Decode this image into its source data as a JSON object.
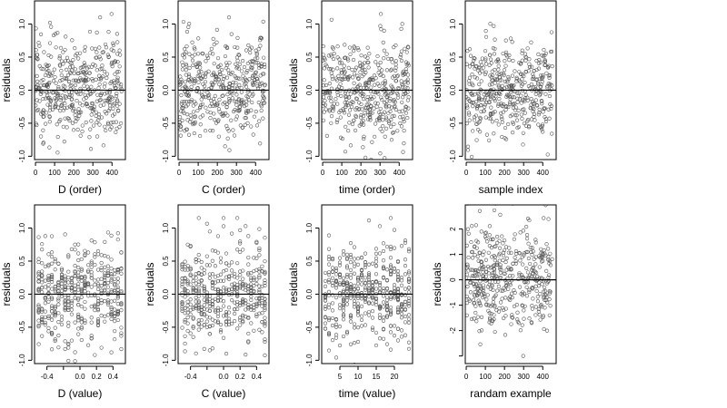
{
  "colors": {
    "point_stroke": "#555555",
    "axis": "#000000",
    "background": "#ffffff"
  },
  "chart_data": [
    {
      "type": "scatter",
      "xlabel": "D (order)",
      "ylabel": "residuals",
      "xlim": [
        -5,
        470
      ],
      "ylim": [
        -1.05,
        1.35
      ],
      "xticks": [
        0,
        100,
        200,
        300,
        400
      ],
      "xtick_labels": [
        "0",
        "100",
        "200",
        "300",
        "400"
      ],
      "yticks": [
        -1.0,
        -0.5,
        0.0,
        0.5,
        1.0
      ],
      "ytick_labels": [
        "-1.0",
        "-0.5",
        "0.0",
        "0.5",
        "1.0"
      ],
      "reference_line_y": 0,
      "grid": false,
      "generator": {
        "n": 450,
        "seed": 11,
        "x_range": [
          0,
          450
        ],
        "x_mode": "uniform",
        "y_sd": 0.38
      }
    },
    {
      "type": "scatter",
      "xlabel": "C (order)",
      "ylabel": "residuals",
      "xlim": [
        -5,
        470
      ],
      "ylim": [
        -1.05,
        1.35
      ],
      "xticks": [
        0,
        100,
        200,
        300,
        400
      ],
      "xtick_labels": [
        "0",
        "100",
        "200",
        "300",
        "400"
      ],
      "yticks": [
        -1.0,
        -0.5,
        0.0,
        0.5,
        1.0
      ],
      "ytick_labels": [
        "-1.0",
        "-0.5",
        "0.0",
        "0.5",
        "1.0"
      ],
      "reference_line_y": 0,
      "grid": false,
      "generator": {
        "n": 450,
        "seed": 23,
        "x_range": [
          0,
          450
        ],
        "x_mode": "uniform",
        "y_sd": 0.38
      }
    },
    {
      "type": "scatter",
      "xlabel": "time (order)",
      "ylabel": "residuals",
      "xlim": [
        -5,
        470
      ],
      "ylim": [
        -1.05,
        1.35
      ],
      "xticks": [
        0,
        100,
        200,
        300,
        400
      ],
      "xtick_labels": [
        "0",
        "100",
        "200",
        "300",
        "400"
      ],
      "yticks": [
        -1.0,
        -0.5,
        0.0,
        0.5,
        1.0
      ],
      "ytick_labels": [
        "-1.0",
        "-0.5",
        "0.0",
        "0.5",
        "1.0"
      ],
      "reference_line_y": 0,
      "grid": false,
      "generator": {
        "n": 450,
        "seed": 37,
        "x_range": [
          0,
          450
        ],
        "x_mode": "uniform",
        "y_sd": 0.38
      }
    },
    {
      "type": "scatter",
      "xlabel": "sample index",
      "ylabel": "residuals",
      "xlim": [
        -5,
        470
      ],
      "ylim": [
        -1.05,
        1.35
      ],
      "xticks": [
        0,
        100,
        200,
        300,
        400
      ],
      "xtick_labels": [
        "0",
        "100",
        "200",
        "300",
        "400"
      ],
      "yticks": [
        -1.0,
        -0.5,
        0.0,
        0.5,
        1.0
      ],
      "ytick_labels": [
        "-1.0",
        "-0.5",
        "0.0",
        "0.5",
        "1.0"
      ],
      "reference_line_y": 0,
      "grid": false,
      "generator": {
        "n": 450,
        "seed": 41,
        "x_range": [
          0,
          450
        ],
        "x_mode": "uniform",
        "y_sd": 0.38
      }
    },
    {
      "type": "scatter",
      "xlabel": "D (value)",
      "ylabel": "residuals",
      "xlim": [
        -0.55,
        0.55
      ],
      "ylim": [
        -1.05,
        1.35
      ],
      "xticks": [
        -0.4,
        -0.2,
        0.0,
        0.2,
        0.4
      ],
      "xtick_labels": [
        "-0.4",
        "",
        "0.0",
        "0.2",
        "0.4"
      ],
      "yticks": [
        -1.0,
        -0.5,
        0.0,
        0.5,
        1.0
      ],
      "ytick_labels": [
        "-1.0",
        "-0.5",
        "0.0",
        "0.5",
        "1.0"
      ],
      "reference_line_y": 0,
      "grid": false,
      "generator": {
        "n": 450,
        "seed": 53,
        "x_range": [
          -0.5,
          0.5
        ],
        "x_mode": "discrete",
        "x_levels": 26,
        "y_sd": 0.38
      }
    },
    {
      "type": "scatter",
      "xlabel": "C (value)",
      "ylabel": "residuals",
      "xlim": [
        -0.55,
        0.55
      ],
      "ylim": [
        -1.05,
        1.35
      ],
      "xticks": [
        -0.4,
        -0.2,
        0.0,
        0.2,
        0.4
      ],
      "xtick_labels": [
        "-0.4",
        "",
        "0.0",
        "0.2",
        "0.4"
      ],
      "yticks": [
        -1.0,
        -0.5,
        0.0,
        0.5,
        1.0
      ],
      "ytick_labels": [
        "-1.0",
        "-0.5",
        "0.0",
        "0.5",
        "1.0"
      ],
      "reference_line_y": 0,
      "grid": false,
      "generator": {
        "n": 450,
        "seed": 67,
        "x_range": [
          -0.5,
          0.5
        ],
        "x_mode": "discrete",
        "x_levels": 31,
        "y_sd": 0.38
      }
    },
    {
      "type": "scatter",
      "xlabel": "time (value)",
      "ylabel": "residuals",
      "xlim": [
        0,
        25
      ],
      "ylim": [
        -1.05,
        1.35
      ],
      "xticks": [
        5,
        10,
        15,
        20
      ],
      "xtick_labels": [
        "5",
        "10",
        "15",
        "20"
      ],
      "yticks": [
        -1.0,
        -0.5,
        0.0,
        0.5,
        1.0
      ],
      "ytick_labels": [
        "-1.0",
        "-0.5",
        "0.0",
        "0.5",
        "1.0"
      ],
      "reference_line_y": 0,
      "grid": false,
      "generator": {
        "n": 450,
        "seed": 79,
        "x_range": [
          1,
          24
        ],
        "x_mode": "discrete",
        "x_levels": 24,
        "y_sd": 0.38
      }
    },
    {
      "type": "scatter",
      "xlabel": "randam example",
      "ylabel": "residuals",
      "xlim": [
        -5,
        470
      ],
      "ylim": [
        -3.3,
        2.95
      ],
      "xticks": [
        0,
        100,
        200,
        300,
        400
      ],
      "xtick_labels": [
        "0",
        "100",
        "200",
        "300",
        "400"
      ],
      "yticks": [
        -3,
        -2,
        -1,
        0,
        1,
        2
      ],
      "ytick_labels": [
        "",
        "-2",
        "-1",
        "0",
        "1",
        "2"
      ],
      "reference_line_y": 0,
      "grid": false,
      "generator": {
        "n": 450,
        "seed": 97,
        "x_range": [
          0,
          450
        ],
        "x_mode": "uniform",
        "y_sd": 1.0
      }
    }
  ]
}
